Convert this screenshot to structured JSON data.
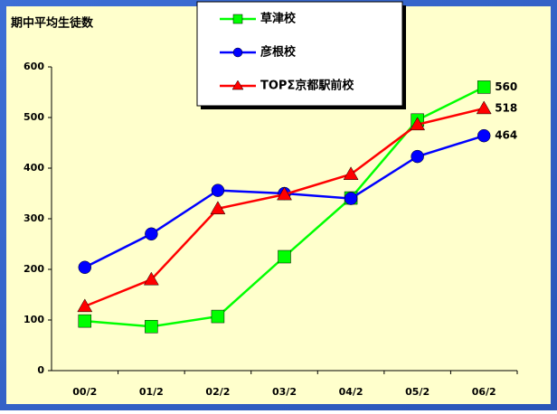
{
  "chart_data": {
    "type": "line",
    "title": "期中平均生徒数",
    "categories": [
      "00/2",
      "01/2",
      "02/2",
      "03/2",
      "04/2",
      "05/2",
      "06/2"
    ],
    "series": [
      {
        "name": "草津校",
        "color": "#00ff00",
        "marker": "square",
        "values": [
          98,
          87,
          107,
          225,
          341,
          495,
          560
        ]
      },
      {
        "name": "彦根校",
        "color": "#0000ff",
        "marker": "circle",
        "values": [
          204,
          270,
          356,
          350,
          340,
          423,
          464
        ]
      },
      {
        "name": "TOPΣ京都駅前校",
        "color": "#ff0000",
        "marker": "triangle",
        "values": [
          127,
          180,
          320,
          348,
          388,
          486,
          518
        ]
      }
    ],
    "ylim": [
      0,
      600
    ],
    "yticks": [
      0,
      100,
      200,
      300,
      400,
      500,
      600
    ],
    "grid": false,
    "legend": "top"
  }
}
